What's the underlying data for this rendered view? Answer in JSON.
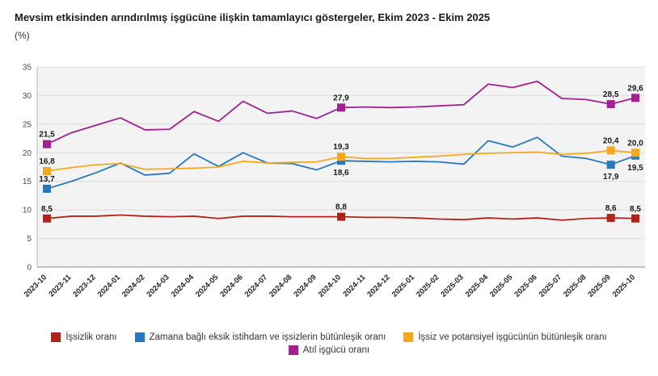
{
  "title": "Mevsim etkisinden arındırılmış işgücüne ilişkin tamamlayıcı göstergeler, Ekim 2023 - Ekim 2025",
  "subtitle": "(%)",
  "chart_data": {
    "type": "line",
    "x": [
      "2023-10",
      "2023-11",
      "2023-12",
      "2024-01",
      "2024-02",
      "2024-03",
      "2024-04",
      "2024-05",
      "2024-06",
      "2024-07",
      "2024-08",
      "2024-09",
      "2024-10",
      "2024-11",
      "2024-12",
      "2025-01",
      "2025-02",
      "2025-03",
      "2025-04",
      "2025-05",
      "2025-06",
      "2025-07",
      "2025-08",
      "2025-09",
      "2025-10"
    ],
    "ylim": [
      0,
      35
    ],
    "y_ticks": [
      0,
      5,
      10,
      15,
      20,
      25,
      30,
      35
    ],
    "grid": true,
    "legend_position": "bottom",
    "plot_bg": "#f3f3f3",
    "grid_color": "#dcdcdc",
    "axis_color": "#8c8c8c",
    "series": [
      {
        "name": "İşsizlik oranı",
        "color": "#B02318",
        "values": [
          8.5,
          8.9,
          8.9,
          9.1,
          8.9,
          8.8,
          8.9,
          8.5,
          8.9,
          8.9,
          8.8,
          8.8,
          8.8,
          8.7,
          8.7,
          8.6,
          8.4,
          8.3,
          8.6,
          8.4,
          8.6,
          8.2,
          8.5,
          8.6,
          8.5
        ],
        "marked_points": [
          {
            "index": 0,
            "label": "8,5",
            "label_pos": "above"
          },
          {
            "index": 12,
            "label": "8,8",
            "label_pos": "above"
          },
          {
            "index": 23,
            "label": "8,6",
            "label_pos": "above"
          },
          {
            "index": 24,
            "label": "8,5",
            "label_pos": "above"
          }
        ]
      },
      {
        "name": "Zamana bağlı eksik istihdam ve işsizlerin bütünleşik oranı",
        "color": "#2878BE",
        "values": [
          13.7,
          15.0,
          16.5,
          18.2,
          16.1,
          16.4,
          19.8,
          17.6,
          20.0,
          18.2,
          18.1,
          17.0,
          18.6,
          18.5,
          18.4,
          18.5,
          18.4,
          18.0,
          22.1,
          21.0,
          22.7,
          19.4,
          19.0,
          17.9,
          19.5
        ],
        "marked_points": [
          {
            "index": 0,
            "label": "13,7",
            "label_pos": "above"
          },
          {
            "index": 12,
            "label": "18,6",
            "label_pos": "below"
          },
          {
            "index": 23,
            "label": "17,9",
            "label_pos": "below"
          },
          {
            "index": 24,
            "label": "19,5",
            "label_pos": "below"
          }
        ]
      },
      {
        "name": "İşsiz ve potansiyel işgücünün bütünleşik oranı",
        "color": "#F6A81C",
        "values": [
          16.8,
          17.4,
          17.9,
          18.1,
          17.1,
          17.2,
          17.3,
          17.5,
          18.5,
          18.2,
          18.3,
          18.4,
          19.3,
          19.0,
          19.0,
          19.2,
          19.4,
          19.7,
          19.9,
          20.0,
          20.1,
          19.7,
          19.9,
          20.4,
          20.0
        ],
        "marked_points": [
          {
            "index": 0,
            "label": "16,8",
            "label_pos": "above"
          },
          {
            "index": 12,
            "label": "19,3",
            "label_pos": "above"
          },
          {
            "index": 23,
            "label": "20,4",
            "label_pos": "above"
          },
          {
            "index": 24,
            "label": "20,0",
            "label_pos": "above"
          }
        ]
      },
      {
        "name": "Atıl işgücü oranı",
        "color": "#A0218F",
        "values": [
          21.5,
          23.5,
          24.8,
          26.1,
          24.0,
          24.1,
          27.2,
          25.5,
          29.0,
          26.9,
          27.3,
          26.0,
          27.9,
          28.0,
          27.9,
          28.0,
          28.2,
          28.4,
          32.0,
          31.4,
          32.5,
          29.5,
          29.3,
          28.5,
          29.6
        ],
        "marked_points": [
          {
            "index": 0,
            "label": "21,5",
            "label_pos": "above"
          },
          {
            "index": 12,
            "label": "27,9",
            "label_pos": "above"
          },
          {
            "index": 23,
            "label": "28,5",
            "label_pos": "above"
          },
          {
            "index": 24,
            "label": "29,6",
            "label_pos": "above"
          }
        ]
      }
    ]
  },
  "legend": {
    "rows": [
      [
        0,
        1,
        2
      ],
      [
        3
      ]
    ]
  }
}
